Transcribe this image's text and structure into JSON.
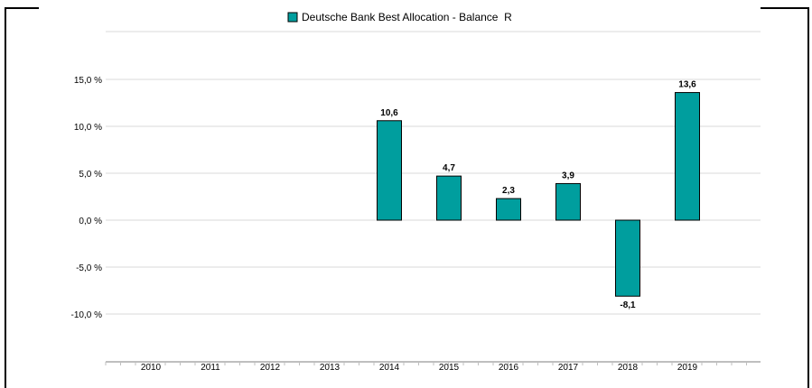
{
  "chart_data": {
    "type": "bar",
    "categories": [
      "2010",
      "2011",
      "2012",
      "2013",
      "2014",
      "2015",
      "2016",
      "2017",
      "2018",
      "2019"
    ],
    "series": [
      {
        "name": "Deutsche Bank Best Allocation - Balance  R",
        "values": [
          null,
          null,
          null,
          null,
          10.6,
          4.7,
          2.3,
          3.9,
          -8.1,
          13.6
        ]
      }
    ],
    "value_labels": [
      "",
      "",
      "",
      "",
      "10,6",
      "4,7",
      "2,3",
      "3,9",
      "-8,1",
      "13,6"
    ],
    "y_ticks": [
      15,
      10,
      5,
      0,
      -5,
      -10
    ],
    "y_tick_labels": [
      "15,0 %",
      "10,0 %",
      "5,0 %",
      "0,0 %",
      "-5,0 %",
      "-10,0 %"
    ],
    "ylim": [
      -15,
      15
    ],
    "grid": true,
    "legend_position": "top-center",
    "colors": {
      "bar": "#009e9e",
      "bar_edge": "#000000",
      "grid": "#d9d9d9",
      "axis": "#bfbfbf",
      "text": "#000000"
    }
  }
}
